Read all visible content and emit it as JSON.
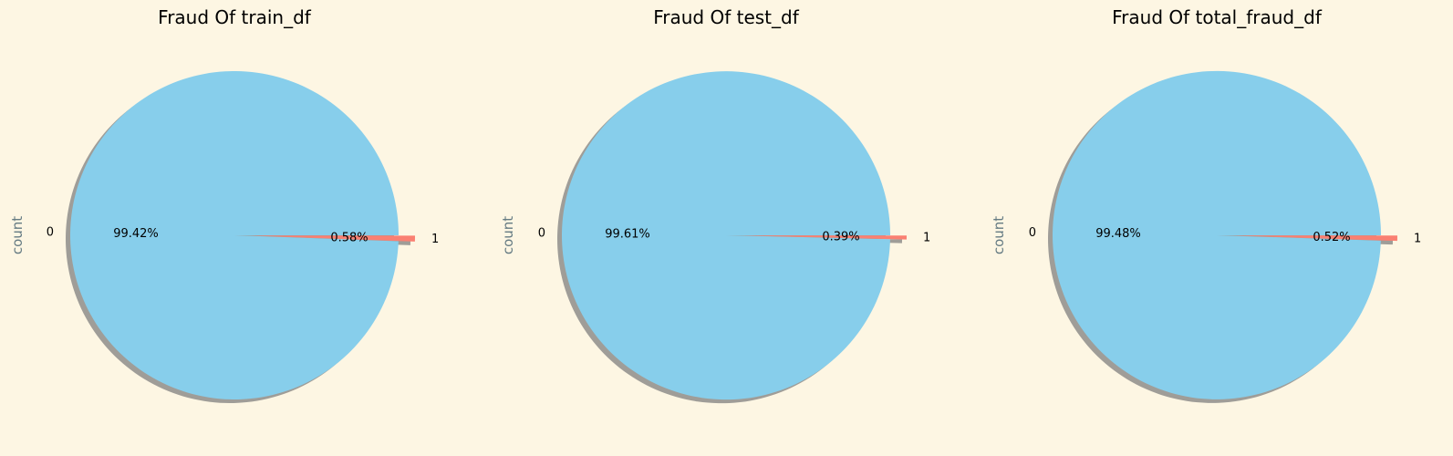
{
  "chart_data": [
    {
      "type": "pie",
      "title": "Fraud Of train_df",
      "ylabel": "count",
      "categories": [
        "0",
        "1"
      ],
      "values": [
        99.42,
        0.58
      ],
      "percent_labels": [
        "99.42%",
        "0.58%"
      ],
      "colors": [
        "#87ceeb",
        "#fa8072"
      ],
      "explode": [
        0,
        0.1
      ],
      "shadow": true
    },
    {
      "type": "pie",
      "title": "Fraud Of test_df",
      "ylabel": "count",
      "categories": [
        "0",
        "1"
      ],
      "values": [
        99.61,
        0.39
      ],
      "percent_labels": [
        "99.61%",
        "0.39%"
      ],
      "colors": [
        "#87ceeb",
        "#fa8072"
      ],
      "explode": [
        0,
        0.1
      ],
      "shadow": true
    },
    {
      "type": "pie",
      "title": "Fraud Of total_fraud_df",
      "ylabel": "count",
      "categories": [
        "0",
        "1"
      ],
      "values": [
        99.48,
        0.52
      ],
      "percent_labels": [
        "99.48%",
        "0.52%"
      ],
      "colors": [
        "#87ceeb",
        "#fa8072"
      ],
      "explode": [
        0,
        0.1
      ],
      "shadow": true
    }
  ],
  "colors": {
    "background": "#fdf6e3",
    "shadow": "#7f7f7f",
    "ylabel": "#657b83"
  }
}
